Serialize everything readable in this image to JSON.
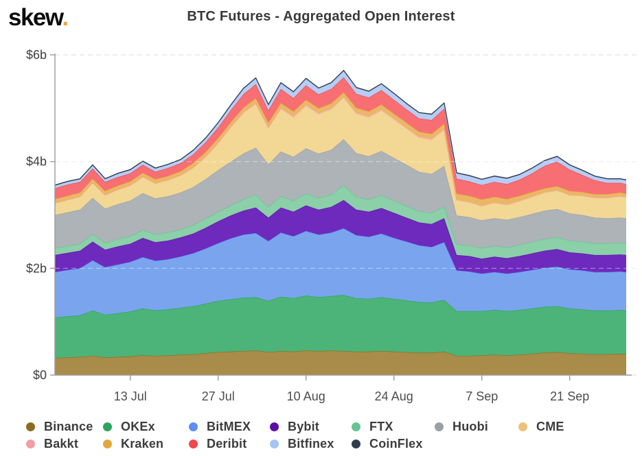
{
  "header": {
    "logo_text": "skew",
    "logo_dot": ".",
    "logo_dot_color": "#f2a33c",
    "title": "BTC Futures - Aggregated Open Interest"
  },
  "legend": {
    "rows": [
      [
        "Binance",
        "OKEx",
        "BitMEX",
        "Bybit",
        "FTX",
        "Huobi",
        "CME"
      ],
      [
        "Bakkt",
        "Kraken",
        "Deribit",
        "Bitfinex",
        "CoinFlex"
      ]
    ]
  },
  "chart_data": {
    "type": "area",
    "stacked": true,
    "title": "BTC Futures - Aggregated Open Interest",
    "unit": "billions of USD",
    "x_unit": "days since 1 Jul 2020",
    "grid": "horizontal dashed",
    "legend_position": "bottom",
    "ylim": [
      0,
      6
    ],
    "y_tick_values": [
      0,
      2,
      4,
      6
    ],
    "y_tick_labels": [
      "$0",
      "$2b",
      "$4b",
      "$6b"
    ],
    "x_tick_days": [
      12,
      26,
      40,
      54,
      68,
      82
    ],
    "x_tick_labels": [
      "13 Jul",
      "27 Jul",
      "10 Aug",
      "24 Aug",
      "7 Sep",
      "21 Sep"
    ],
    "x_days": [
      0,
      2,
      4,
      6,
      8,
      10,
      12,
      14,
      16,
      18,
      20,
      22,
      24,
      26,
      28,
      30,
      32,
      34,
      36,
      38,
      40,
      42,
      44,
      46,
      48,
      50,
      52,
      54,
      56,
      58,
      60,
      62,
      64,
      66,
      68,
      70,
      72,
      74,
      76,
      78,
      80,
      82,
      84,
      86,
      88,
      90,
      91
    ],
    "series": [
      {
        "name": "Binance",
        "color": "#8c6d1f",
        "fill": "#a98c49",
        "values": [
          0.32,
          0.33,
          0.34,
          0.36,
          0.33,
          0.34,
          0.35,
          0.37,
          0.36,
          0.37,
          0.38,
          0.39,
          0.41,
          0.43,
          0.44,
          0.45,
          0.46,
          0.43,
          0.45,
          0.44,
          0.46,
          0.45,
          0.46,
          0.45,
          0.44,
          0.44,
          0.45,
          0.44,
          0.43,
          0.42,
          0.42,
          0.44,
          0.36,
          0.36,
          0.37,
          0.38,
          0.37,
          0.38,
          0.4,
          0.42,
          0.43,
          0.41,
          0.4,
          0.39,
          0.39,
          0.4,
          0.39
        ]
      },
      {
        "name": "OKEx",
        "color": "#2aa45f",
        "fill": "#4cb478",
        "values": [
          0.76,
          0.77,
          0.78,
          0.85,
          0.8,
          0.82,
          0.84,
          0.88,
          0.85,
          0.86,
          0.88,
          0.9,
          0.93,
          0.96,
          0.98,
          1.0,
          1.0,
          0.96,
          1.02,
          1.0,
          1.03,
          1.01,
          1.02,
          1.05,
          1.0,
          0.99,
          1.01,
          0.99,
          0.97,
          0.95,
          0.94,
          0.97,
          0.84,
          0.84,
          0.83,
          0.84,
          0.83,
          0.84,
          0.85,
          0.86,
          0.86,
          0.84,
          0.83,
          0.82,
          0.82,
          0.82,
          0.82
        ]
      },
      {
        "name": "BitMEX",
        "color": "#5b8ff0",
        "fill": "#7ba4ef",
        "values": [
          0.85,
          0.87,
          0.88,
          0.94,
          0.89,
          0.91,
          0.93,
          0.96,
          0.93,
          0.94,
          0.96,
          0.99,
          1.03,
          1.08,
          1.14,
          1.18,
          1.2,
          1.12,
          1.2,
          1.16,
          1.21,
          1.17,
          1.19,
          1.25,
          1.18,
          1.16,
          1.19,
          1.14,
          1.1,
          1.06,
          1.04,
          1.08,
          0.76,
          0.74,
          0.7,
          0.71,
          0.7,
          0.71,
          0.72,
          0.73,
          0.74,
          0.73,
          0.73,
          0.72,
          0.72,
          0.72,
          0.72
        ]
      },
      {
        "name": "Bybit",
        "color": "#5c0fa8",
        "fill": "#6e2abd",
        "values": [
          0.32,
          0.32,
          0.33,
          0.35,
          0.33,
          0.34,
          0.34,
          0.36,
          0.35,
          0.35,
          0.36,
          0.37,
          0.39,
          0.41,
          0.43,
          0.45,
          0.48,
          0.44,
          0.47,
          0.46,
          0.48,
          0.47,
          0.48,
          0.53,
          0.48,
          0.47,
          0.48,
          0.47,
          0.45,
          0.43,
          0.43,
          0.45,
          0.29,
          0.29,
          0.28,
          0.29,
          0.29,
          0.3,
          0.31,
          0.32,
          0.33,
          0.32,
          0.32,
          0.32,
          0.32,
          0.32,
          0.32
        ]
      },
      {
        "name": "FTX",
        "color": "#66c392",
        "fill": "#8bd0a8",
        "values": [
          0.13,
          0.13,
          0.13,
          0.14,
          0.13,
          0.14,
          0.14,
          0.15,
          0.15,
          0.15,
          0.15,
          0.16,
          0.17,
          0.18,
          0.19,
          0.21,
          0.24,
          0.2,
          0.21,
          0.21,
          0.22,
          0.22,
          0.23,
          0.28,
          0.24,
          0.23,
          0.24,
          0.23,
          0.22,
          0.21,
          0.21,
          0.22,
          0.2,
          0.2,
          0.2,
          0.2,
          0.2,
          0.21,
          0.21,
          0.22,
          0.22,
          0.22,
          0.22,
          0.22,
          0.22,
          0.22,
          0.22
        ]
      },
      {
        "name": "Huobi",
        "color": "#9aa0a6",
        "fill": "#adb3b7",
        "values": [
          0.62,
          0.63,
          0.64,
          0.68,
          0.64,
          0.65,
          0.67,
          0.69,
          0.67,
          0.68,
          0.69,
          0.71,
          0.74,
          0.78,
          0.82,
          0.86,
          0.88,
          0.8,
          0.84,
          0.82,
          0.85,
          0.83,
          0.84,
          0.86,
          0.82,
          0.81,
          0.83,
          0.8,
          0.77,
          0.74,
          0.73,
          0.76,
          0.54,
          0.53,
          0.52,
          0.52,
          0.52,
          0.52,
          0.53,
          0.53,
          0.53,
          0.51,
          0.5,
          0.48,
          0.47,
          0.47,
          0.47
        ]
      },
      {
        "name": "CME",
        "color": "#edc379",
        "fill": "#f3d795",
        "values": [
          0.22,
          0.23,
          0.24,
          0.28,
          0.25,
          0.27,
          0.28,
          0.3,
          0.28,
          0.3,
          0.32,
          0.36,
          0.42,
          0.5,
          0.64,
          0.76,
          0.82,
          0.68,
          0.8,
          0.74,
          0.8,
          0.74,
          0.76,
          0.78,
          0.74,
          0.73,
          0.76,
          0.72,
          0.68,
          0.64,
          0.64,
          0.68,
          0.29,
          0.28,
          0.27,
          0.29,
          0.28,
          0.3,
          0.32,
          0.34,
          0.35,
          0.34,
          0.36,
          0.37,
          0.38,
          0.4,
          0.39
        ]
      },
      {
        "name": "Bakkt",
        "color": "#f29da3",
        "fill": "#f6bdc2",
        "values": [
          0.01,
          0.01,
          0.01,
          0.01,
          0.01,
          0.01,
          0.01,
          0.01,
          0.01,
          0.01,
          0.01,
          0.01,
          0.01,
          0.02,
          0.02,
          0.02,
          0.02,
          0.02,
          0.02,
          0.02,
          0.02,
          0.02,
          0.02,
          0.02,
          0.02,
          0.02,
          0.02,
          0.02,
          0.02,
          0.02,
          0.02,
          0.02,
          0.01,
          0.01,
          0.01,
          0.01,
          0.01,
          0.01,
          0.01,
          0.01,
          0.01,
          0.01,
          0.01,
          0.01,
          0.01,
          0.01,
          0.01
        ]
      },
      {
        "name": "Kraken",
        "color": "#e2a63d",
        "fill": "#eab863",
        "values": [
          0.07,
          0.07,
          0.07,
          0.07,
          0.07,
          0.07,
          0.07,
          0.07,
          0.07,
          0.07,
          0.07,
          0.08,
          0.08,
          0.08,
          0.08,
          0.08,
          0.09,
          0.08,
          0.09,
          0.09,
          0.09,
          0.09,
          0.09,
          0.08,
          0.09,
          0.09,
          0.09,
          0.09,
          0.09,
          0.09,
          0.09,
          0.09,
          0.11,
          0.11,
          0.11,
          0.1,
          0.1,
          0.09,
          0.08,
          0.07,
          0.07,
          0.07,
          0.06,
          0.06,
          0.06,
          0.06,
          0.06
        ]
      },
      {
        "name": "Deribit",
        "color": "#f4464d",
        "fill": "#f76f72",
        "values": [
          0.2,
          0.21,
          0.2,
          0.19,
          0.17,
          0.16,
          0.15,
          0.15,
          0.14,
          0.15,
          0.15,
          0.16,
          0.18,
          0.2,
          0.22,
          0.25,
          0.26,
          0.23,
          0.26,
          0.25,
          0.27,
          0.26,
          0.27,
          0.28,
          0.26,
          0.26,
          0.27,
          0.26,
          0.25,
          0.25,
          0.26,
          0.28,
          0.28,
          0.27,
          0.27,
          0.28,
          0.28,
          0.3,
          0.35,
          0.42,
          0.46,
          0.4,
          0.32,
          0.26,
          0.21,
          0.18,
          0.18
        ]
      },
      {
        "name": "Bitfinex",
        "color": "#a6c3f4",
        "fill": "#b6cdf6",
        "values": [
          0.05,
          0.05,
          0.05,
          0.06,
          0.05,
          0.06,
          0.06,
          0.06,
          0.06,
          0.06,
          0.06,
          0.07,
          0.07,
          0.08,
          0.09,
          0.1,
          0.11,
          0.1,
          0.11,
          0.11,
          0.12,
          0.11,
          0.11,
          0.12,
          0.11,
          0.11,
          0.11,
          0.11,
          0.1,
          0.1,
          0.1,
          0.1,
          0.1,
          0.1,
          0.1,
          0.1,
          0.1,
          0.09,
          0.09,
          0.09,
          0.09,
          0.08,
          0.08,
          0.07,
          0.07,
          0.07,
          0.07
        ]
      },
      {
        "name": "CoinFlex",
        "color": "#2f3e4a",
        "fill": "#3c4c58",
        "values": [
          0.01,
          0.01,
          0.01,
          0.01,
          0.01,
          0.01,
          0.01,
          0.01,
          0.01,
          0.01,
          0.01,
          0.01,
          0.01,
          0.01,
          0.01,
          0.01,
          0.01,
          0.01,
          0.01,
          0.01,
          0.01,
          0.01,
          0.01,
          0.01,
          0.01,
          0.01,
          0.01,
          0.01,
          0.01,
          0.01,
          0.01,
          0.01,
          0.01,
          0.01,
          0.01,
          0.01,
          0.01,
          0.01,
          0.01,
          0.01,
          0.01,
          0.01,
          0.01,
          0.01,
          0.01,
          0.01,
          0.01
        ]
      }
    ]
  }
}
